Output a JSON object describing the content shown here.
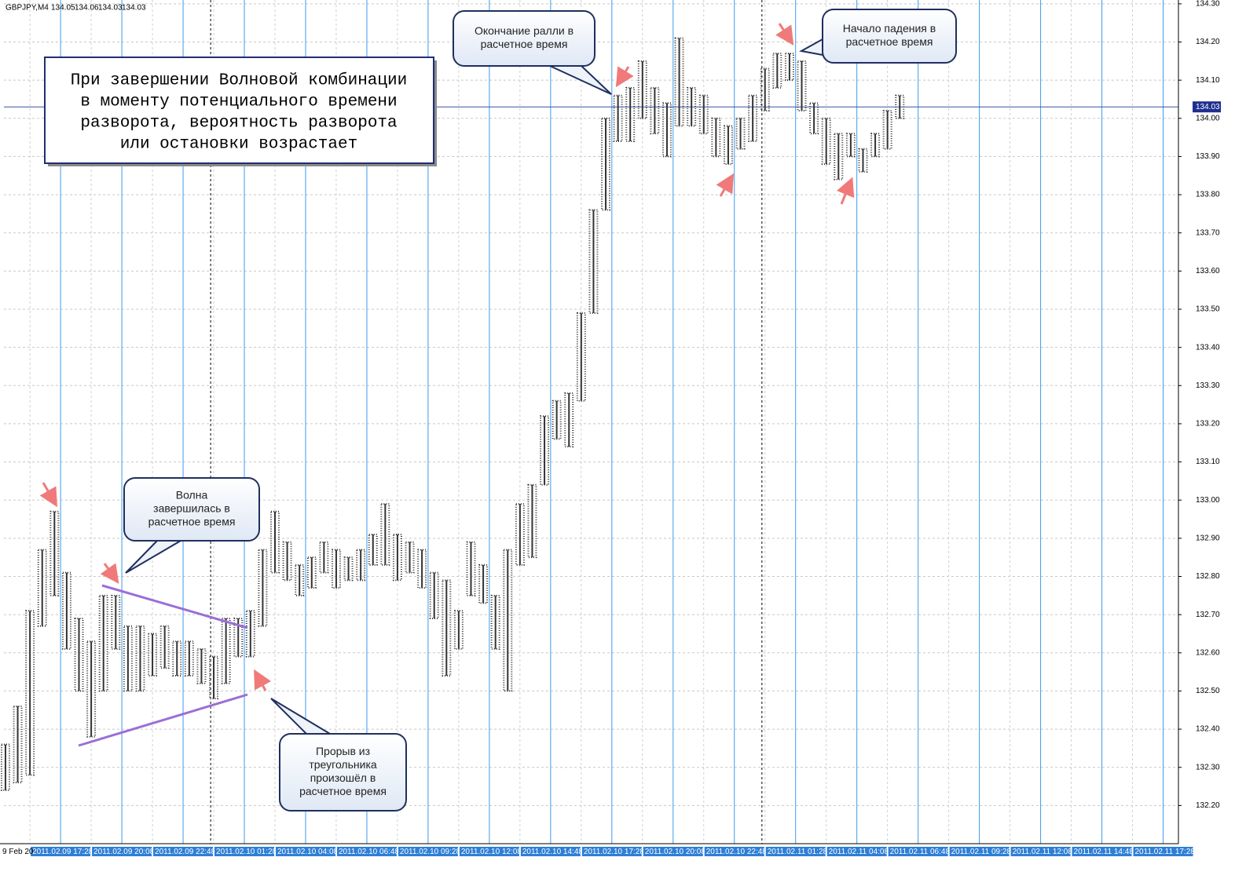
{
  "chart_data": {
    "type": "range-bar",
    "title": "GBPJPY,M4",
    "ohlc_header": [
      134.05,
      134.06,
      134.03,
      134.03
    ],
    "x_start_label": "9 Feb 20",
    "color": "#333333",
    "grid": true,
    "xlim": [
      -37,
      730
    ],
    "ylim": [
      132.1,
      134.31
    ],
    "day_separators": [
      98,
      458
    ],
    "last_price": 134.03,
    "xticks": [
      {
        "value": 0,
        "label": "2011.02.09 17:28"
      },
      {
        "value": 40,
        "label": "2011.02.09 20:08"
      },
      {
        "value": 80,
        "label": "2011.02.09 22:48"
      },
      {
        "value": 120,
        "label": "2011.02.10 01:28"
      },
      {
        "value": 160,
        "label": "2011.02.10 04:08"
      },
      {
        "value": 200,
        "label": "2011.02.10 06:48"
      },
      {
        "value": 240,
        "label": "2011.02.10 09:28"
      },
      {
        "value": 280,
        "label": "2011.02.10 12:08"
      },
      {
        "value": 320,
        "label": "2011.02.10 14:48"
      },
      {
        "value": 360,
        "label": "2011.02.10 17:28"
      },
      {
        "value": 400,
        "label": "2011.02.10 20:08"
      },
      {
        "value": 440,
        "label": "2011.02.10 22:48"
      },
      {
        "value": 480,
        "label": "2011.02.11 01:28"
      },
      {
        "value": 520,
        "label": "2011.02.11 04:08"
      },
      {
        "value": 560,
        "label": "2011.02.11 06:48"
      },
      {
        "value": 600,
        "label": "2011.02.11 09:28"
      },
      {
        "value": 640,
        "label": "2011.02.11 12:08"
      },
      {
        "value": 680,
        "label": "2011.02.11 14:48"
      },
      {
        "value": 720,
        "label": "2011.02.11 17:28"
      }
    ],
    "yticks": [
      {
        "value": 132.2,
        "label": "132.20"
      },
      {
        "value": 132.3,
        "label": "132.30"
      },
      {
        "value": 132.4,
        "label": "132.40"
      },
      {
        "value": 132.5,
        "label": "132.50"
      },
      {
        "value": 132.6,
        "label": "132.60"
      },
      {
        "value": 132.7,
        "label": "132.70"
      },
      {
        "value": 132.8,
        "label": "132.80"
      },
      {
        "value": 132.9,
        "label": "132.90"
      },
      {
        "value": 133.0,
        "label": "133.00"
      },
      {
        "value": 133.1,
        "label": "133.10"
      },
      {
        "value": 133.2,
        "label": "133.20"
      },
      {
        "value": 133.3,
        "label": "133.30"
      },
      {
        "value": 133.4,
        "label": "133.40"
      },
      {
        "value": 133.5,
        "label": "133.50"
      },
      {
        "value": 133.6,
        "label": "133.60"
      },
      {
        "value": 133.7,
        "label": "133.70"
      },
      {
        "value": 133.8,
        "label": "133.80"
      },
      {
        "value": 133.9,
        "label": "133.90"
      },
      {
        "value": 134.0,
        "label": "134.00"
      },
      {
        "value": 134.1,
        "label": "134.10"
      },
      {
        "value": 134.2,
        "label": "134.20"
      },
      {
        "value": 134.3,
        "label": "134.30"
      }
    ],
    "x": [
      -36,
      -28,
      -20,
      -12,
      -4,
      4,
      12,
      20,
      28,
      36,
      44,
      52,
      60,
      68,
      76,
      84,
      92,
      100,
      108,
      116,
      124,
      132,
      140,
      148,
      156,
      164,
      172,
      180,
      188,
      196,
      204,
      212,
      220,
      228,
      236,
      244,
      252,
      260,
      268,
      276,
      284,
      292,
      300,
      308,
      316,
      324,
      332,
      340,
      348,
      356,
      364,
      372,
      380,
      388,
      396,
      404,
      412,
      420,
      428,
      436,
      444,
      452,
      460,
      468,
      476,
      484,
      492,
      500,
      508,
      516,
      524,
      532,
      540,
      548
    ],
    "high": [
      132.36,
      132.46,
      132.71,
      132.87,
      132.97,
      132.81,
      132.69,
      132.63,
      132.75,
      132.75,
      132.67,
      132.67,
      132.65,
      132.67,
      132.63,
      132.63,
      132.61,
      132.59,
      132.69,
      132.69,
      132.71,
      132.87,
      132.97,
      132.89,
      132.83,
      132.85,
      132.89,
      132.87,
      132.85,
      132.87,
      132.91,
      132.99,
      132.91,
      132.89,
      132.87,
      132.81,
      132.79,
      132.71,
      132.89,
      132.83,
      132.75,
      132.87,
      132.99,
      133.04,
      133.22,
      133.26,
      133.28,
      133.49,
      133.76,
      134.0,
      134.06,
      134.08,
      134.15,
      134.08,
      134.04,
      134.21,
      134.08,
      134.06,
      134.0,
      133.98,
      134.0,
      134.06,
      134.13,
      134.17,
      134.17,
      134.15,
      134.04,
      134.0,
      133.96,
      133.96,
      133.92,
      133.96,
      134.02,
      134.06
    ],
    "low": [
      132.24,
      132.26,
      132.28,
      132.67,
      132.75,
      132.61,
      132.5,
      132.38,
      132.5,
      132.61,
      132.5,
      132.5,
      132.54,
      132.56,
      132.54,
      132.54,
      132.52,
      132.48,
      132.52,
      132.59,
      132.59,
      132.67,
      132.81,
      132.79,
      132.75,
      132.77,
      132.81,
      132.77,
      132.79,
      132.79,
      132.83,
      132.83,
      132.79,
      132.81,
      132.77,
      132.69,
      132.54,
      132.61,
      132.75,
      132.73,
      132.61,
      132.5,
      132.83,
      132.85,
      133.04,
      133.16,
      133.14,
      133.26,
      133.49,
      133.76,
      133.94,
      133.94,
      134.0,
      133.96,
      133.9,
      133.98,
      133.98,
      133.96,
      133.9,
      133.88,
      133.92,
      133.94,
      134.02,
      134.08,
      134.1,
      134.02,
      133.96,
      133.88,
      133.84,
      133.9,
      133.86,
      133.9,
      133.92,
      134.0
    ],
    "annotations": {
      "main_note": [
        "При завершении Волновой комбинации",
        "в моменту потенциального времени",
        "разворота, вероятность разворота",
        "или остановки возрастает"
      ],
      "callouts": [
        {
          "lines": [
            "Окончание ралли в",
            "расчетное время"
          ]
        },
        {
          "lines": [
            "Начало падения в",
            "расчетное время"
          ]
        },
        {
          "lines": [
            "Волна",
            "завершилась в",
            "расчетное время"
          ]
        },
        {
          "lines": [
            "Прорыв из",
            "треугольника",
            "произошёл в",
            "расчетное время"
          ]
        }
      ]
    }
  }
}
